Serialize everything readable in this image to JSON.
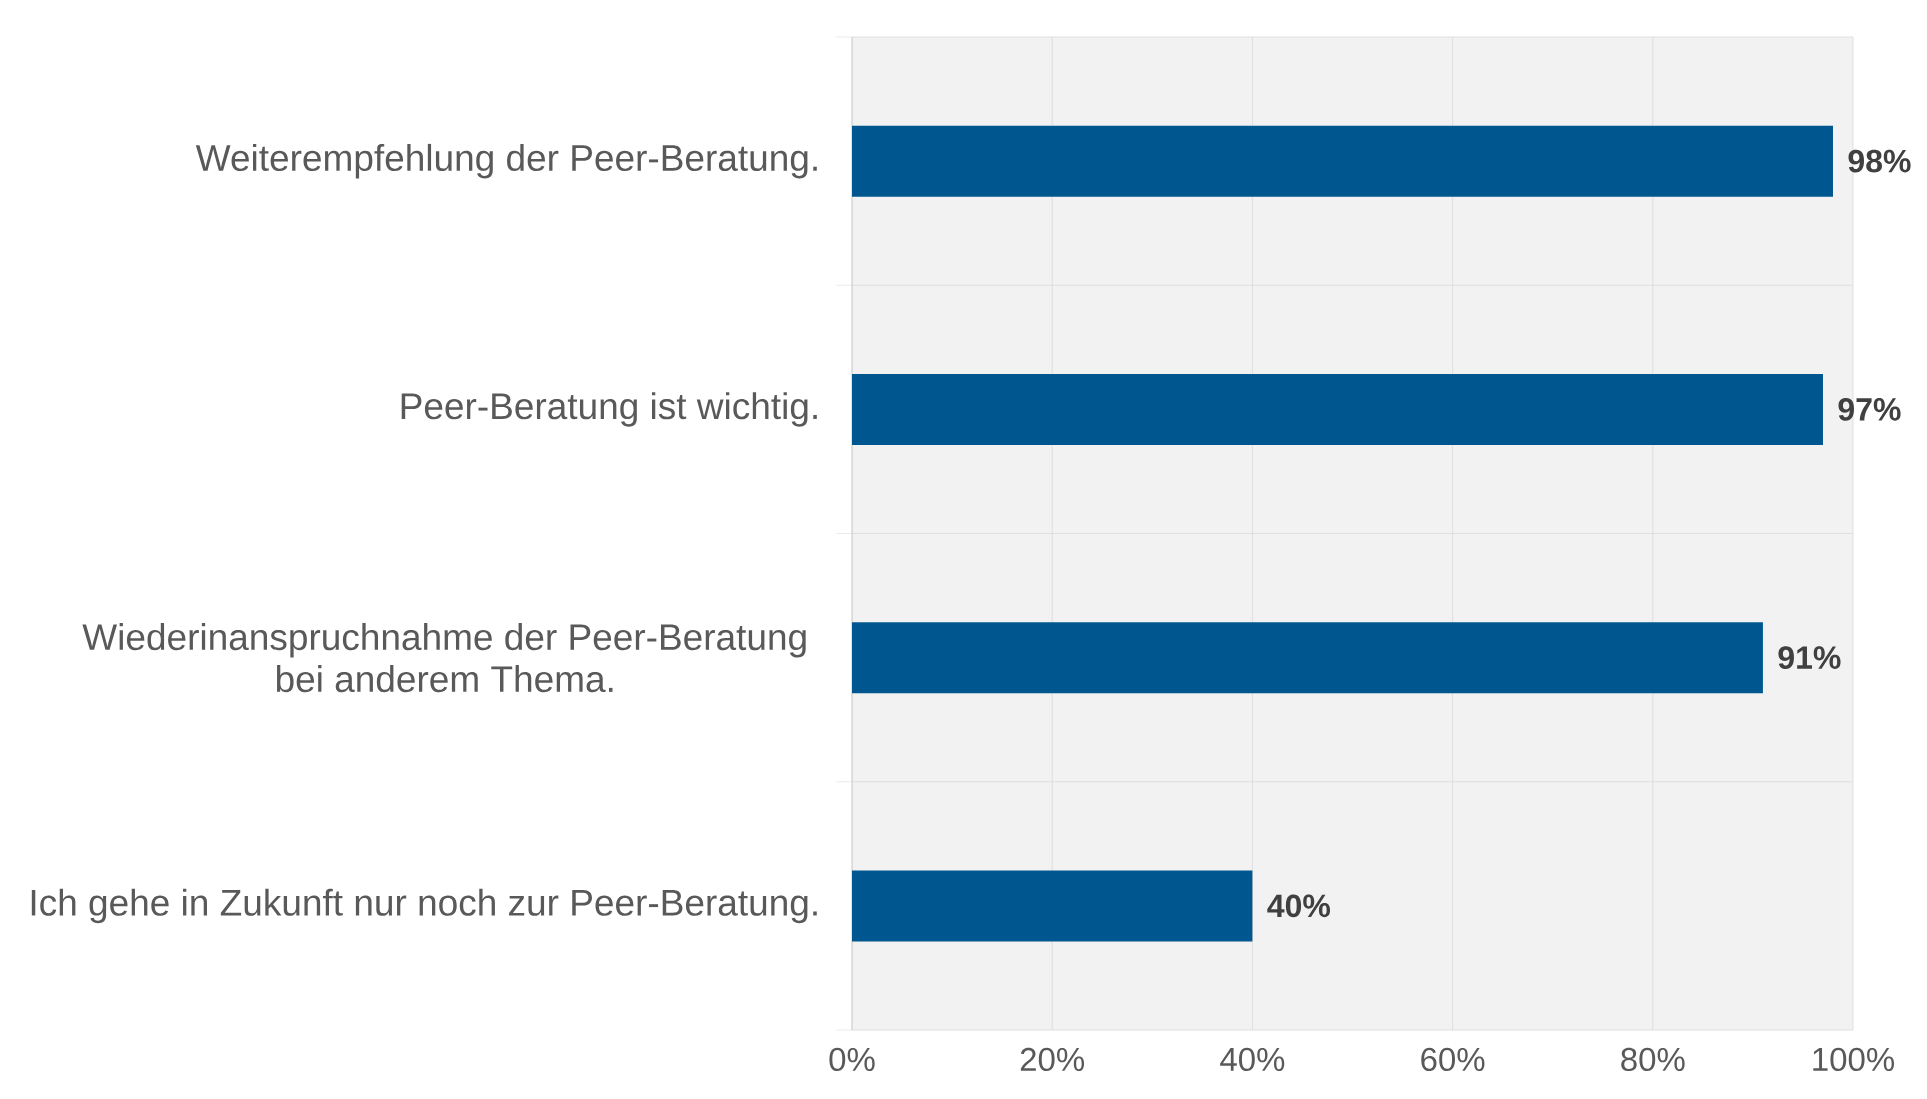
{
  "chart_data": {
    "type": "bar",
    "orientation": "horizontal",
    "categories": [
      "Weiterempfehlung der Peer-Beratung.",
      "Peer-Beratung ist wichtig.",
      "Wiederinanspruchnahme der Peer-Beratung bei anderem Thema.",
      "Ich gehe in Zukunft nur noch zur Peer-Beratung."
    ],
    "values": [
      98,
      97,
      91,
      40
    ],
    "value_labels": [
      "98%",
      "97%",
      "91%",
      "40%"
    ],
    "color": "#00578f",
    "xlim": [
      0,
      100
    ],
    "xticks": [
      {
        "value": 0,
        "label": "0%"
      },
      {
        "value": 20,
        "label": "20%"
      },
      {
        "value": 40,
        "label": "40%"
      },
      {
        "value": 60,
        "label": "60%"
      },
      {
        "value": 80,
        "label": "80%"
      },
      {
        "value": 100,
        "label": "100%"
      }
    ],
    "grid": true
  }
}
